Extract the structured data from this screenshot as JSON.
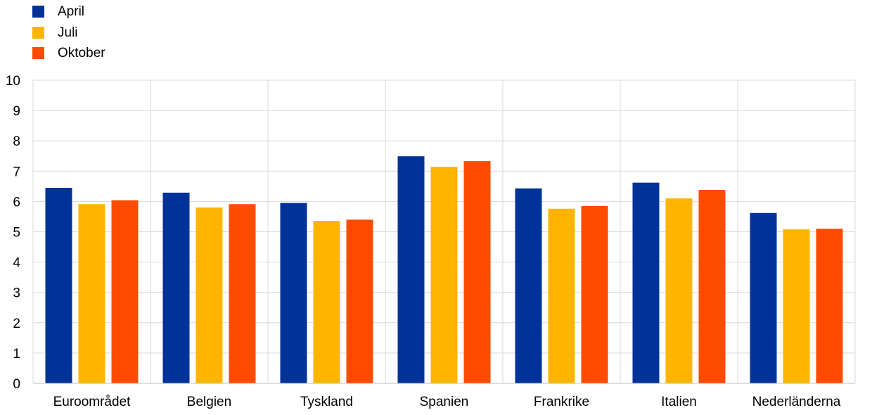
{
  "chart_data": {
    "type": "bar",
    "categories": [
      "Euroområdet",
      "Belgien",
      "Tyskland",
      "Spanien",
      "Frankrike",
      "Italien",
      "Nederländerna"
    ],
    "series": [
      {
        "name": "April",
        "color": "#003299",
        "values": [
          6.45,
          6.29,
          5.95,
          7.49,
          6.43,
          6.62,
          5.62
        ]
      },
      {
        "name": "Juli",
        "color": "#FFB400",
        "values": [
          5.91,
          5.8,
          5.36,
          7.14,
          5.76,
          6.1,
          5.08
        ]
      },
      {
        "name": "Oktober",
        "color": "#FF4B00",
        "values": [
          6.04,
          5.91,
          5.4,
          7.33,
          5.85,
          6.38,
          5.1
        ]
      }
    ],
    "ylim": [
      0,
      10
    ],
    "yticks": [
      0,
      1,
      2,
      3,
      4,
      5,
      6,
      7,
      8,
      9,
      10
    ],
    "title": "",
    "xlabel": "",
    "ylabel": "",
    "grid": true,
    "legend_position": "top-left"
  }
}
